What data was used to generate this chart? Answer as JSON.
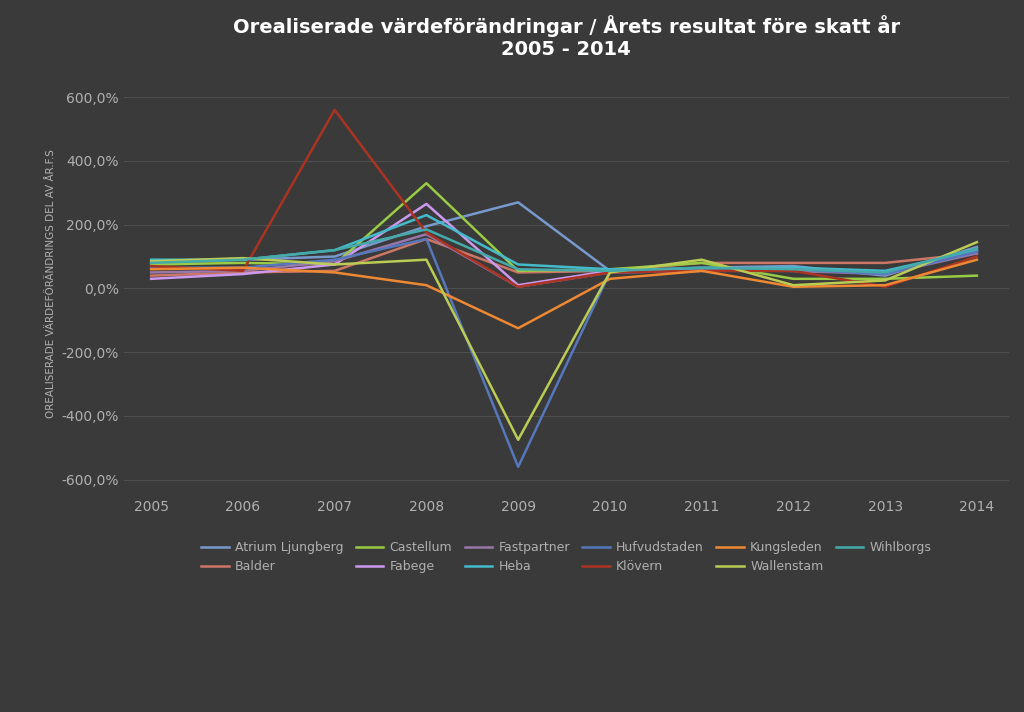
{
  "title": "Orealiserade värdeförändringar / Årets resultat före skatt år\n2005 - 2014",
  "ylabel": "OREALISERADE VÄRDEFÖRÄNDRINGS DEL AV ÅR.F.S",
  "years": [
    2005,
    2006,
    2007,
    2008,
    2009,
    2010,
    2011,
    2012,
    2013,
    2014
  ],
  "background_color": "#3a3a3a",
  "grid_color": "#505050",
  "text_color": "#b0b0b0",
  "series": [
    {
      "name": "Atrium Ljungberg",
      "color": "#7799cc",
      "values": [
        80,
        90,
        100,
        195,
        270,
        55,
        65,
        70,
        40,
        130
      ]
    },
    {
      "name": "Balder",
      "color": "#cc7766",
      "values": [
        40,
        50,
        55,
        155,
        50,
        55,
        80,
        80,
        80,
        110
      ]
    },
    {
      "name": "Castellum",
      "color": "#99cc44",
      "values": [
        75,
        80,
        75,
        330,
        55,
        60,
        80,
        30,
        30,
        40
      ]
    },
    {
      "name": "Fabege",
      "color": "#cc99ee",
      "values": [
        30,
        45,
        75,
        265,
        10,
        55,
        60,
        55,
        50,
        120
      ]
    },
    {
      "name": "Fastpartner",
      "color": "#9977aa",
      "values": [
        50,
        55,
        85,
        170,
        5,
        50,
        55,
        55,
        45,
        110
      ]
    },
    {
      "name": "Heba",
      "color": "#44bbcc",
      "values": [
        90,
        90,
        120,
        230,
        75,
        60,
        60,
        65,
        55,
        120
      ]
    },
    {
      "name": "Hufvudstaden",
      "color": "#5577bb",
      "values": [
        65,
        65,
        90,
        155,
        -560,
        50,
        55,
        60,
        45,
        115
      ]
    },
    {
      "name": "Klövern",
      "color": "#aa3322",
      "values": [
        70,
        55,
        560,
        175,
        5,
        50,
        55,
        55,
        5,
        100
      ]
    },
    {
      "name": "Kungsleden",
      "color": "#ee8833",
      "values": [
        60,
        65,
        50,
        10,
        -125,
        30,
        55,
        5,
        10,
        90
      ]
    },
    {
      "name": "Wallenstam",
      "color": "#bbcc55",
      "values": [
        85,
        95,
        75,
        90,
        -475,
        50,
        90,
        10,
        25,
        145
      ]
    },
    {
      "name": "Wihlborgs",
      "color": "#44aaaa",
      "values": [
        80,
        90,
        120,
        185,
        60,
        55,
        65,
        60,
        50,
        125
      ]
    }
  ],
  "ylim": [
    -650,
    680
  ],
  "yticks": [
    -600,
    -400,
    -200,
    0,
    200,
    400,
    600
  ]
}
